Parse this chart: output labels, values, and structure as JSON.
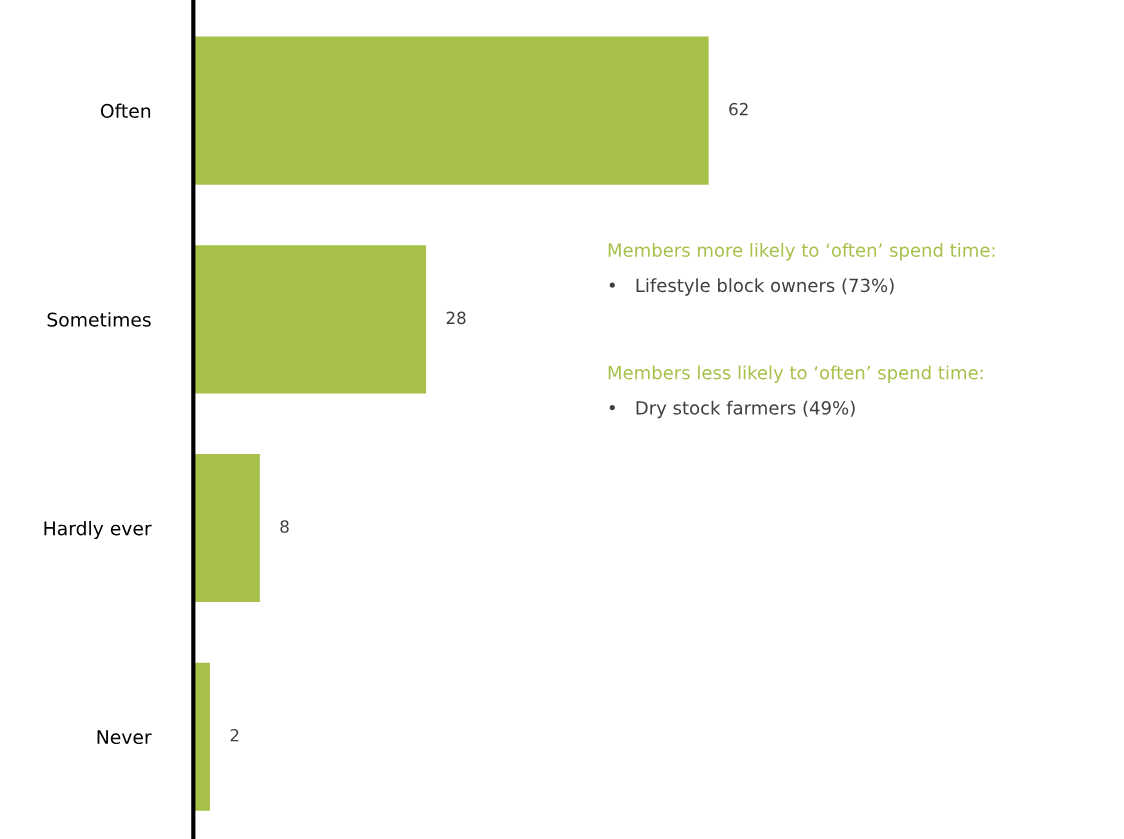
{
  "chart_data": {
    "type": "bar",
    "orientation": "horizontal",
    "categories": [
      "Often",
      "Sometimes",
      "Hardly ever",
      "Never"
    ],
    "values": [
      62,
      28,
      8,
      2
    ],
    "color": "#a6c04a",
    "data_labels": true,
    "tick_labels": "y",
    "grid": false,
    "legend": false,
    "annotations": [
      "Members more likely to ‘often’ spend time:",
      "•   Lifestyle block owners (73%)",
      "Members less likely to ‘often’ spend time:",
      "•   Dry stock farmers (49%)"
    ]
  }
}
